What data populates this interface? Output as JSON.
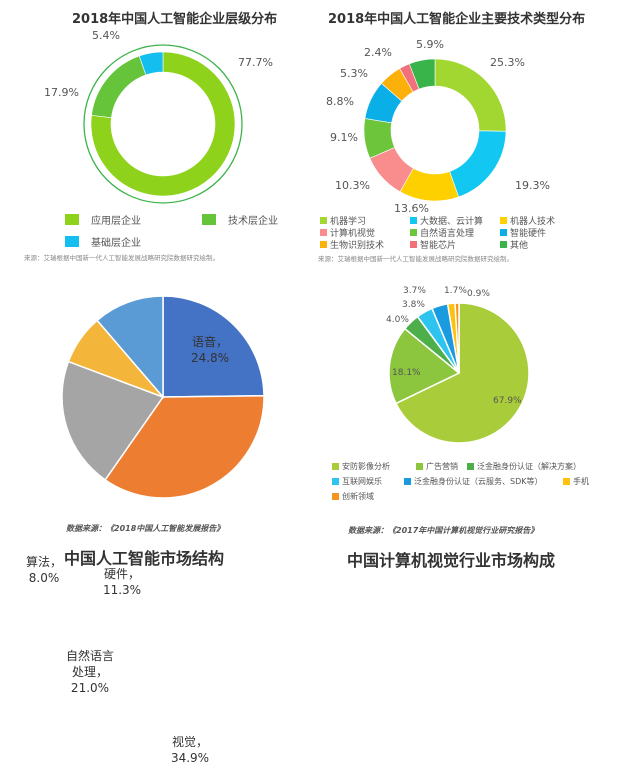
{
  "chart_data": [
    {
      "type": "pie",
      "variant": "donut",
      "title": "2018年中国人工智能企业层级分布",
      "categories": [
        "应用层企业",
        "技术层企业",
        "基础层企业"
      ],
      "values": [
        77.7,
        17.9,
        5.4
      ],
      "value_labels": [
        "77.7%",
        "17.9%",
        "5.4%"
      ],
      "colors": [
        "#8ed21c",
        "#66c43a",
        "#14bff0"
      ],
      "legend_position": "bottom",
      "source": "来源：艾瑞根据中国新一代人工智能发展战略研究院数据研究绘制。"
    },
    {
      "type": "pie",
      "variant": "donut",
      "title": "2018年中国人工智能企业主要技术类型分布",
      "categories": [
        "机器学习",
        "大数据、云计算",
        "机器人技术",
        "计算机视觉",
        "自然语言处理",
        "智能硬件",
        "生物识别技术",
        "智能芯片",
        "其他"
      ],
      "values": [
        25.3,
        19.3,
        13.6,
        10.3,
        9.1,
        8.8,
        5.3,
        2.4,
        5.9
      ],
      "value_labels": [
        "25.3%",
        "19.3%",
        "13.6%",
        "10.3%",
        "9.1%",
        "8.8%",
        "5.3%",
        "2.4%",
        "5.9%"
      ],
      "colors": [
        "#a2d630",
        "#12c8f2",
        "#fed000",
        "#f98c8c",
        "#6cc53a",
        "#0bafe8",
        "#fcb00a",
        "#f2707a",
        "#38b44a"
      ],
      "legend_position": "bottom",
      "source": "来源：艾瑞根据中国新一代人工智能发展战略研究院数据研究绘制。"
    },
    {
      "type": "pie",
      "title": "中国人工智能市场结构",
      "categories": [
        "语音",
        "视觉",
        "自然语言处理",
        "算法",
        "硬件"
      ],
      "values": [
        24.8,
        34.9,
        21.0,
        8.0,
        11.3
      ],
      "slice_labels": [
        [
          "语音，",
          "24.8%"
        ],
        [
          "视觉，",
          "34.9%"
        ],
        [
          "自然语言",
          "处理，",
          "21.0%"
        ],
        [
          "算法，",
          "8.0%"
        ],
        [
          "硬件，",
          "11.3%"
        ]
      ],
      "colors": [
        "#4472c4",
        "#ed7d31",
        "#a5a5a5",
        "#f4b63a",
        "#5b9bd5"
      ],
      "source": "数据来源：《2018中国人工智能发展报告》"
    },
    {
      "type": "pie",
      "title": "中国计算机视觉行业市场构成",
      "categories": [
        "安防影像分析",
        "广告营销",
        "泛金融身份认证（解决方案）",
        "互联网娱乐",
        "泛金融身份认证（云服务、SDK等）",
        "手机",
        "创新领域"
      ],
      "values": [
        67.9,
        18.1,
        4.0,
        3.8,
        3.7,
        1.7,
        0.9
      ],
      "value_labels": [
        "67.9%",
        "18.1%",
        "4.0%",
        "3.8%",
        "3.7%",
        "1.7%",
        "0.9%"
      ],
      "colors": [
        "#a9cd3a",
        "#8cc63f",
        "#4daf4a",
        "#2ec4f0",
        "#1a9be0",
        "#fec10e",
        "#f7941d"
      ],
      "legend_position": "bottom",
      "source": "数据来源：《2017年中国计算机视觉行业研究报告》"
    }
  ]
}
